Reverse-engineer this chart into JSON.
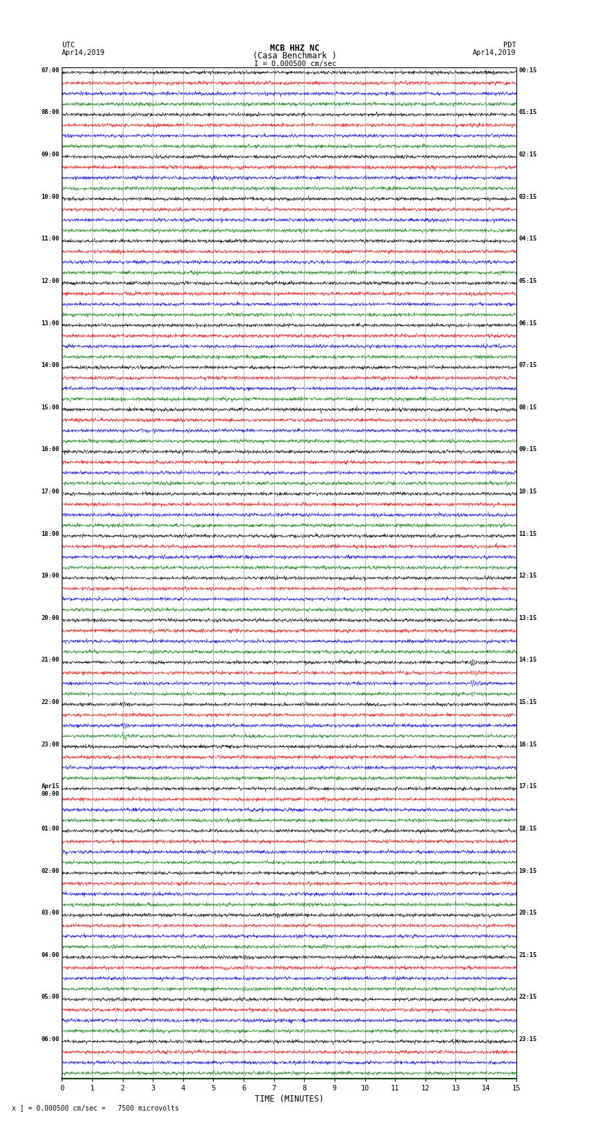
{
  "title_line1": "MCB HHZ NC",
  "title_line2": "(Casa Benchmark )",
  "title_line3": "I = 0.000500 cm/sec",
  "xlabel": "TIME (MINUTES)",
  "footer": "x ] = 0.000500 cm/sec =   7500 microvolts",
  "utc_times": [
    "07:00",
    "08:00",
    "09:00",
    "10:00",
    "11:00",
    "12:00",
    "13:00",
    "14:00",
    "15:00",
    "16:00",
    "17:00",
    "18:00",
    "19:00",
    "20:00",
    "21:00",
    "22:00",
    "23:00",
    "Apr15\n00:00",
    "01:00",
    "02:00",
    "03:00",
    "04:00",
    "05:00",
    "06:00"
  ],
  "pdt_times": [
    "00:15",
    "01:15",
    "02:15",
    "03:15",
    "04:15",
    "05:15",
    "06:15",
    "07:15",
    "08:15",
    "09:15",
    "10:15",
    "11:15",
    "12:15",
    "13:15",
    "14:15",
    "15:15",
    "16:15",
    "17:15",
    "18:15",
    "19:15",
    "20:15",
    "21:15",
    "22:15",
    "23:15"
  ],
  "trace_colors": [
    "black",
    "red",
    "blue",
    "green"
  ],
  "bg_color": "#ffffff",
  "n_rows": 24,
  "traces_per_row": 4,
  "x_min": 0,
  "x_max": 15,
  "x_ticks": [
    0,
    1,
    2,
    3,
    4,
    5,
    6,
    7,
    8,
    9,
    10,
    11,
    12,
    13,
    14,
    15
  ],
  "seed": 42
}
